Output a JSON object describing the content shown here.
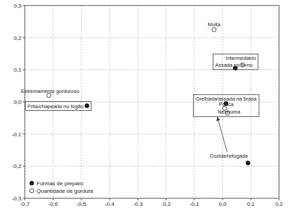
{
  "chart_data": {
    "type": "scatter",
    "xlim": [
      -0.7,
      0.2
    ],
    "xticks": [
      {
        "value": -0.7,
        "label": "-0,7"
      },
      {
        "value": -0.6,
        "label": "-0,6"
      },
      {
        "value": -0.5,
        "label": "-0,5"
      },
      {
        "value": -0.4,
        "label": "-0,4"
      },
      {
        "value": -0.3,
        "label": "-0,3"
      },
      {
        "value": -0.2,
        "label": "-0,2"
      },
      {
        "value": -0.1,
        "label": "-0,1"
      },
      {
        "value": 0,
        "label": "0,0"
      },
      {
        "value": 0.1,
        "label": "0,1"
      },
      {
        "value": 0.2,
        "label": "0,2"
      }
    ],
    "ylim": [
      -0.3,
      0.3
    ],
    "yticks": [
      {
        "value": -0.3,
        "label": "-0,3"
      },
      {
        "value": -0.2,
        "label": "-0,2"
      },
      {
        "value": -0.1,
        "label": "-0,1"
      },
      {
        "value": 0,
        "label": "0,0"
      },
      {
        "value": 0.1,
        "label": "0,1"
      },
      {
        "value": 0.2,
        "label": "0,2"
      },
      {
        "value": 0.3,
        "label": "0,3"
      }
    ],
    "grid": true,
    "legend": "lower left",
    "series": [
      {
        "name": "Formas de preparo",
        "color": "#1a1a1a",
        "marker": "filled",
        "labels": [
          "Frita/chapeada no fogão",
          "Assada no forno",
          "Grelhada/assada na brasa",
          "Cozida/refogada"
        ],
        "x": [
          -0.48,
          0.045,
          0.012,
          0.09
        ],
        "values": [
          -0.012,
          0.105,
          -0.005,
          -0.19
        ]
      },
      {
        "name": "Quantidade de gordura",
        "color": "#1a1a1a",
        "marker": "open",
        "labels": [
          "Muita",
          "Intermediário",
          "Extremamente gorduroso",
          "Pouca",
          "Nenhuma"
        ],
        "x": [
          -0.03,
          0.07,
          -0.615,
          0.008,
          0.018
        ],
        "values": [
          0.225,
          0.115,
          0.02,
          -0.02,
          -0.035
        ]
      }
    ]
  }
}
